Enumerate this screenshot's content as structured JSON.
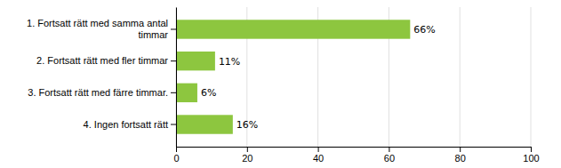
{
  "chart_data": {
    "type": "bar",
    "orientation": "horizontal",
    "categories": [
      "1. Fortsatt rätt med samma antal\ntimmar",
      "2. Fortsatt rätt med fler timmar",
      "3. Fortsatt rätt med färre timmar.",
      "4. Ingen fortsatt rätt"
    ],
    "values": [
      66,
      11,
      6,
      16
    ],
    "value_labels": [
      "66%",
      "11%",
      "6%",
      "16%"
    ],
    "data_labels": true,
    "color": "#8dc63f",
    "xlim": [
      0,
      100
    ],
    "xticks": [
      0,
      20,
      40,
      60,
      80,
      100
    ],
    "grid": true
  }
}
